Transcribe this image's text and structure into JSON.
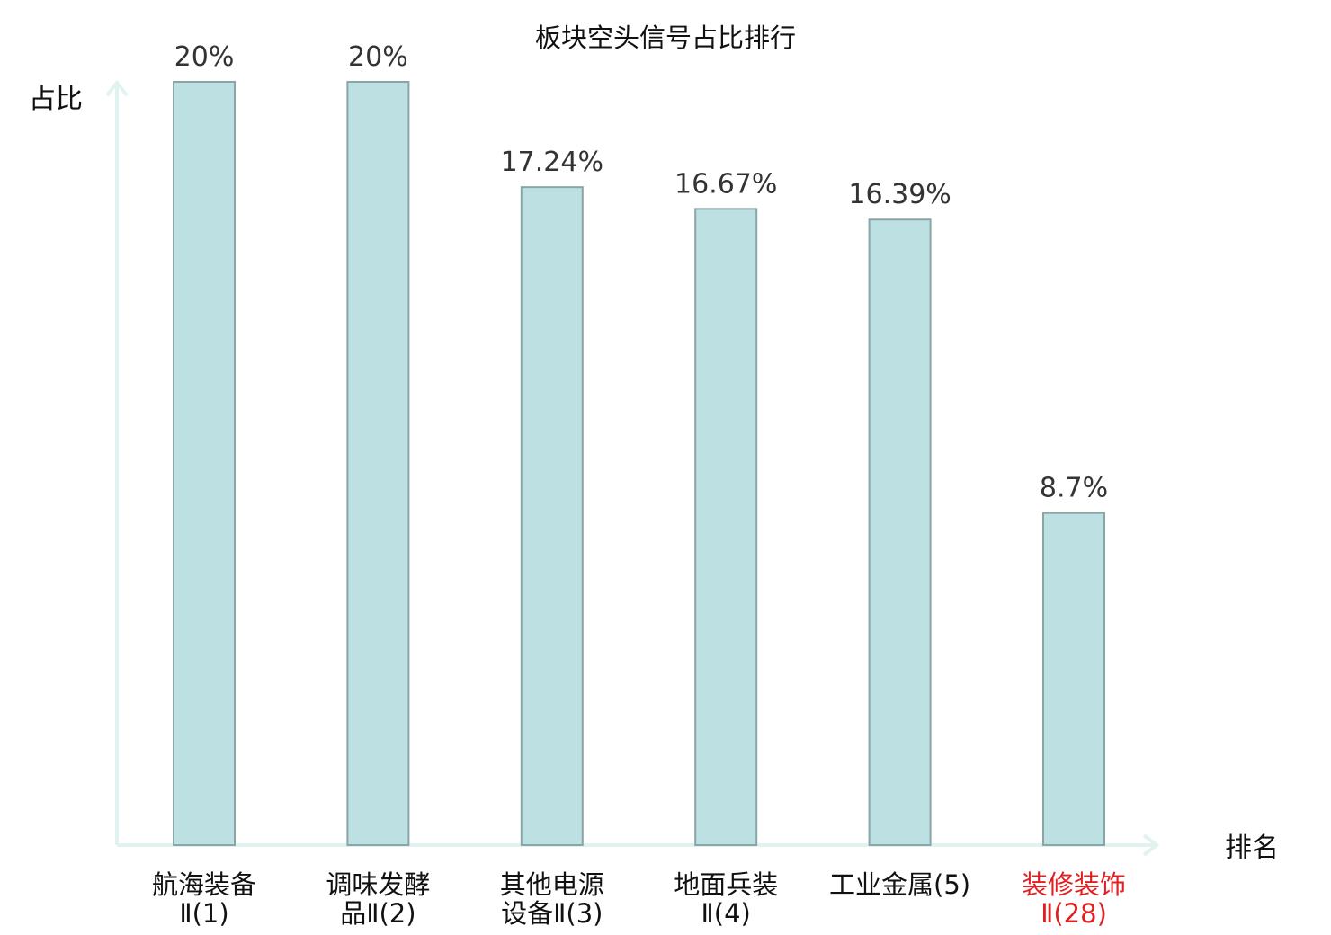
{
  "chart_data": {
    "type": "bar",
    "title": "板块空头信号占比排行",
    "ylabel": "占比",
    "xlabel": "排名",
    "ylim": [
      0,
      21
    ],
    "grid": false,
    "legend": "none",
    "colors": {
      "bar_fill": "#bde0e3",
      "bar_stroke": "#8aa5a8",
      "axis": "#e0f3f1",
      "highlight_text": "#e02020"
    },
    "categories": [
      {
        "lines": [
          "航海装备",
          "Ⅱ(1)"
        ],
        "highlight": false
      },
      {
        "lines": [
          "调味发酵",
          "品Ⅱ(2)"
        ],
        "highlight": false
      },
      {
        "lines": [
          "其他电源",
          "设备Ⅱ(3)"
        ],
        "highlight": false
      },
      {
        "lines": [
          "地面兵装",
          "Ⅱ(4)"
        ],
        "highlight": false
      },
      {
        "lines": [
          "工业金属(5)"
        ],
        "highlight": false
      },
      {
        "lines": [
          "装修装饰",
          "Ⅱ(28)"
        ],
        "highlight": true
      }
    ],
    "values": [
      20,
      20,
      17.24,
      16.67,
      16.39,
      8.7
    ],
    "value_labels": [
      "20%",
      "20%",
      "17.24%",
      "16.67%",
      "16.39%",
      "8.7%"
    ]
  }
}
